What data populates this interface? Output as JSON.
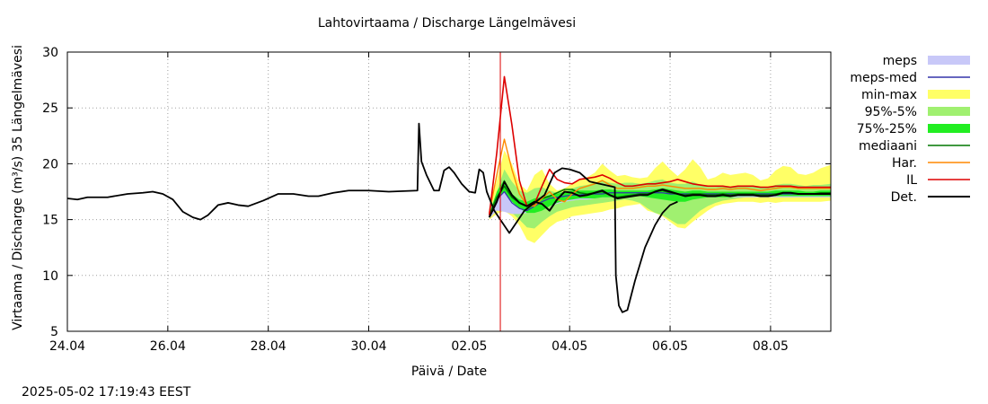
{
  "chart_data": {
    "type": "line",
    "title": "Lahtovirtaama / Discharge  Längelmävesi",
    "xlabel": "Päivä / Date",
    "ylabel": "Virtaama / Discharge (m³/s)  35 Längelmävesi",
    "ylim": [
      5,
      30
    ],
    "yticks": [
      5,
      10,
      15,
      20,
      25,
      30
    ],
    "xlim": [
      0,
      15.2
    ],
    "xticks": [
      {
        "pos": 0,
        "label": "24.04"
      },
      {
        "pos": 2,
        "label": "26.04"
      },
      {
        "pos": 4,
        "label": "28.04"
      },
      {
        "pos": 6,
        "label": "30.04"
      },
      {
        "pos": 8,
        "label": "02.05"
      },
      {
        "pos": 10,
        "label": "04.05"
      },
      {
        "pos": 12,
        "label": "06.05"
      },
      {
        "pos": 14,
        "label": "08.05"
      }
    ],
    "grid": true,
    "legend_position": "right",
    "forecast_start": 8.62,
    "legend": [
      {
        "label": "meps",
        "color": "#c8c8f8",
        "kind": "band"
      },
      {
        "label": "meps-med",
        "color": "#3333aa",
        "kind": "line"
      },
      {
        "label": "min-max",
        "color": "#ffff66",
        "kind": "band"
      },
      {
        "label": "95%-5%",
        "color": "#a0f070",
        "kind": "band"
      },
      {
        "label": "75%-25%",
        "color": "#22ee22",
        "kind": "band"
      },
      {
        "label": "mediaani",
        "color": "#007700",
        "kind": "line"
      },
      {
        "label": "Har.",
        "color": "#ff8800",
        "kind": "line"
      },
      {
        "label": "IL",
        "color": "#dd0000",
        "kind": "line"
      },
      {
        "label": "Det.",
        "color": "#000000",
        "kind": "line"
      }
    ],
    "observed": {
      "name": "Det.",
      "points": [
        [
          0,
          16.9
        ],
        [
          0.2,
          16.8
        ],
        [
          0.4,
          17.0
        ],
        [
          0.8,
          17.0
        ],
        [
          1.2,
          17.3
        ],
        [
          1.5,
          17.4
        ],
        [
          1.7,
          17.5
        ],
        [
          1.9,
          17.3
        ],
        [
          2.1,
          16.8
        ],
        [
          2.3,
          15.7
        ],
        [
          2.5,
          15.2
        ],
        [
          2.65,
          15.0
        ],
        [
          2.8,
          15.4
        ],
        [
          3.0,
          16.3
        ],
        [
          3.2,
          16.5
        ],
        [
          3.4,
          16.3
        ],
        [
          3.6,
          16.2
        ],
        [
          3.9,
          16.7
        ],
        [
          4.2,
          17.3
        ],
        [
          4.5,
          17.3
        ],
        [
          4.8,
          17.1
        ],
        [
          5.0,
          17.1
        ],
        [
          5.3,
          17.4
        ],
        [
          5.6,
          17.6
        ],
        [
          6.0,
          17.6
        ],
        [
          6.4,
          17.5
        ],
        [
          6.97,
          17.6
        ],
        [
          7.0,
          23.6
        ],
        [
          7.05,
          20.2
        ],
        [
          7.15,
          19.0
        ],
        [
          7.3,
          17.6
        ],
        [
          7.4,
          17.6
        ],
        [
          7.5,
          19.4
        ],
        [
          7.6,
          19.7
        ],
        [
          7.7,
          19.2
        ],
        [
          7.85,
          18.2
        ],
        [
          8.0,
          17.5
        ],
        [
          8.12,
          17.4
        ],
        [
          8.2,
          19.5
        ],
        [
          8.28,
          19.2
        ],
        [
          8.35,
          17.5
        ],
        [
          8.5,
          15.8
        ],
        [
          8.65,
          14.8
        ],
        [
          8.8,
          13.8
        ],
        [
          8.95,
          14.8
        ],
        [
          9.1,
          15.8
        ],
        [
          9.3,
          16.5
        ],
        [
          9.5,
          17.2
        ],
        [
          9.7,
          19.2
        ],
        [
          9.85,
          19.6
        ],
        [
          10.0,
          19.5
        ],
        [
          10.2,
          19.2
        ],
        [
          10.4,
          18.4
        ],
        [
          10.6,
          18.2
        ],
        [
          10.8,
          18.0
        ],
        [
          10.9,
          17.9
        ],
        [
          10.92,
          10.0
        ],
        [
          10.98,
          7.3
        ],
        [
          11.05,
          6.7
        ],
        [
          11.15,
          6.9
        ],
        [
          11.3,
          9.5
        ],
        [
          11.5,
          12.5
        ],
        [
          11.7,
          14.5
        ],
        [
          11.85,
          15.6
        ],
        [
          12.0,
          16.3
        ],
        [
          12.15,
          16.6
        ]
      ]
    },
    "forecast": {
      "x": [
        8.4,
        8.55,
        8.7,
        8.85,
        9.0,
        9.15,
        9.3,
        9.45,
        9.6,
        9.75,
        9.9,
        10.05,
        10.2,
        10.35,
        10.5,
        10.65,
        10.8,
        10.95,
        11.1,
        11.25,
        11.4,
        11.55,
        11.7,
        11.85,
        12.0,
        12.15,
        12.3,
        12.45,
        12.6,
        12.75,
        12.9,
        13.05,
        13.2,
        13.35,
        13.5,
        13.65,
        13.8,
        13.95,
        14.1,
        14.25,
        14.4,
        14.55,
        14.7,
        14.85,
        15.0,
        15.2
      ],
      "minmax_lo": [
        15.0,
        15.5,
        15.8,
        15.3,
        14.5,
        13.2,
        12.9,
        13.6,
        14.3,
        14.8,
        15.0,
        15.3,
        15.4,
        15.5,
        15.6,
        15.7,
        15.9,
        16.0,
        16.2,
        16.3,
        16.4,
        15.8,
        15.6,
        15.3,
        14.8,
        14.3,
        14.2,
        14.8,
        15.3,
        15.8,
        16.2,
        16.4,
        16.5,
        16.6,
        16.6,
        16.6,
        16.5,
        16.6,
        16.5,
        16.6,
        16.6,
        16.6,
        16.6,
        16.6,
        16.6,
        16.7
      ],
      "minmax_hi": [
        16.0,
        18.5,
        21.2,
        20.0,
        18.2,
        17.6,
        19.0,
        19.5,
        18.2,
        17.6,
        17.8,
        18.2,
        18.6,
        18.8,
        19.2,
        20.0,
        19.4,
        18.9,
        19.0,
        18.8,
        18.7,
        18.8,
        19.6,
        20.2,
        19.5,
        18.9,
        19.5,
        20.4,
        19.7,
        18.6,
        18.8,
        19.2,
        19.0,
        19.1,
        19.2,
        19.0,
        18.5,
        18.7,
        19.4,
        19.8,
        19.7,
        19.1,
        19.0,
        19.2,
        19.6,
        19.9
      ],
      "p95_lo": [
        15.1,
        15.8,
        16.0,
        15.6,
        15.0,
        14.3,
        14.2,
        14.8,
        15.3,
        15.7,
        15.9,
        16.1,
        16.2,
        16.3,
        16.4,
        16.5,
        16.6,
        16.7,
        16.8,
        16.7,
        16.5,
        16.0,
        15.6,
        15.4,
        15.0,
        14.6,
        14.6,
        15.2,
        15.8,
        16.2,
        16.5,
        16.7,
        16.8,
        16.9,
        17.0,
        17.0,
        17.0,
        17.0,
        17.0,
        17.0,
        17.0,
        17.0,
        17.0,
        17.0,
        17.0,
        17.0
      ],
      "p95_hi": [
        15.7,
        17.5,
        19.5,
        18.4,
        17.6,
        17.4,
        17.8,
        17.9,
        17.6,
        17.4,
        17.5,
        17.8,
        18.0,
        18.1,
        18.3,
        18.5,
        18.3,
        18.2,
        18.3,
        18.3,
        18.2,
        18.3,
        18.5,
        18.6,
        18.3,
        18.2,
        18.2,
        18.4,
        18.1,
        17.9,
        17.9,
        18.0,
        17.9,
        18.0,
        18.0,
        18.0,
        17.9,
        17.9,
        18.1,
        18.2,
        18.2,
        18.1,
        18.0,
        18.1,
        18.1,
        18.2
      ],
      "p75_lo": [
        15.3,
        16.8,
        17.5,
        16.6,
        16.0,
        15.6,
        15.6,
        15.8,
        16.2,
        16.5,
        16.7,
        16.8,
        16.9,
        16.9,
        16.9,
        17.0,
        17.0,
        17.0,
        17.1,
        17.1,
        17.1,
        17.0,
        16.9,
        16.8,
        16.7,
        16.6,
        16.6,
        16.8,
        16.9,
        17.0,
        17.0,
        17.0,
        17.0,
        17.1,
        17.1,
        17.1,
        17.1,
        17.1,
        17.1,
        17.1,
        17.1,
        17.1,
        17.1,
        17.1,
        17.1,
        17.1
      ],
      "p75_hi": [
        15.5,
        17.5,
        18.6,
        17.3,
        16.8,
        16.6,
        16.9,
        17.0,
        17.2,
        17.3,
        17.5,
        17.6,
        17.6,
        17.6,
        17.6,
        17.7,
        17.7,
        17.6,
        17.6,
        17.6,
        17.6,
        17.6,
        17.7,
        17.8,
        17.7,
        17.6,
        17.5,
        17.6,
        17.6,
        17.5,
        17.5,
        17.5,
        17.5,
        17.5,
        17.5,
        17.5,
        17.5,
        17.5,
        17.6,
        17.6,
        17.6,
        17.6,
        17.5,
        17.5,
        17.6,
        17.6
      ],
      "meps_lo": [
        15.1,
        15.8,
        15.7,
        15.5,
        15.5,
        15.6,
        15.7,
        15.9,
        16.2,
        16.4,
        16.6,
        16.7,
        16.8,
        16.8,
        16.9,
        17.0,
        17.0,
        17.0,
        17.1,
        17.1,
        17.1,
        17.0,
        17.0,
        17.0,
        17.0,
        17.0,
        17.0,
        17.0,
        17.0,
        17.0,
        17.0,
        17.0,
        17.0,
        17.0,
        17.0,
        17.0,
        17.0,
        17.0,
        17.0,
        17.0,
        17.0,
        17.0,
        17.0,
        17.0,
        17.0,
        17.0
      ],
      "meps_hi": [
        15.6,
        17.4,
        18.0,
        16.8,
        16.1,
        16.0,
        16.4,
        16.8,
        17.1,
        17.2,
        17.3,
        17.4,
        17.4,
        17.5,
        17.5,
        17.5,
        17.5,
        17.5,
        17.5,
        17.5,
        17.5,
        17.5,
        17.5,
        17.5,
        17.5,
        17.5,
        17.5,
        17.5,
        17.5,
        17.5,
        17.5,
        17.5,
        17.5,
        17.5,
        17.5,
        17.5,
        17.5,
        17.5,
        17.5,
        17.5,
        17.5,
        17.5,
        17.5,
        17.5,
        17.5,
        17.5
      ],
      "meps_med": [
        15.3,
        16.8,
        17.5,
        16.5,
        16.0,
        15.8,
        16.2,
        16.6,
        16.9,
        17.0,
        17.1,
        17.2,
        17.2,
        17.3,
        17.3,
        17.3,
        17.4,
        17.4,
        17.4,
        17.4,
        17.4,
        17.4,
        17.4,
        17.4,
        17.3,
        17.3,
        17.3,
        17.3,
        17.3,
        17.3,
        17.3,
        17.3,
        17.3,
        17.3,
        17.3,
        17.3,
        17.3,
        17.3,
        17.3,
        17.3,
        17.3,
        17.3,
        17.3,
        17.3,
        17.3,
        17.3
      ],
      "median": [
        15.4,
        17.0,
        18.0,
        17.0,
        16.5,
        16.2,
        16.6,
        16.9,
        17.1,
        17.4,
        17.7,
        17.7,
        17.4,
        17.3,
        17.4,
        17.5,
        17.2,
        17.0,
        17.1,
        17.2,
        17.3,
        17.3,
        17.5,
        17.6,
        17.4,
        17.3,
        17.2,
        17.3,
        17.3,
        17.2,
        17.2,
        17.3,
        17.2,
        17.3,
        17.3,
        17.3,
        17.2,
        17.2,
        17.3,
        17.4,
        17.4,
        17.3,
        17.3,
        17.3,
        17.4,
        17.4
      ],
      "har": [
        15.6,
        19.0,
        22.2,
        19.5,
        17.3,
        16.3,
        16.2,
        16.9,
        17.5,
        16.8,
        16.6,
        17.3,
        17.8,
        18.0,
        18.2,
        18.5,
        18.1,
        17.8,
        17.8,
        17.8,
        17.9,
        18.0,
        18.0,
        18.1,
        18.0,
        17.9,
        17.8,
        17.8,
        17.8,
        17.7,
        17.7,
        17.8,
        17.7,
        17.8,
        17.8,
        17.7,
        17.6,
        17.7,
        17.8,
        17.9,
        17.9,
        17.8,
        17.8,
        17.8,
        17.8,
        17.8
      ],
      "il": [
        15.4,
        21.0,
        27.8,
        23.5,
        18.5,
        16.2,
        16.4,
        18.0,
        19.5,
        18.6,
        18.3,
        18.2,
        18.6,
        18.7,
        18.8,
        19.0,
        18.7,
        18.3,
        18.0,
        18.0,
        18.1,
        18.2,
        18.2,
        18.3,
        18.4,
        18.6,
        18.4,
        18.2,
        18.1,
        18.0,
        18.0,
        18.0,
        17.9,
        18.0,
        18.0,
        18.0,
        17.9,
        17.9,
        18.0,
        18.0,
        18.0,
        17.9,
        17.9,
        17.9,
        17.9,
        17.9
      ],
      "det": [
        15.2,
        16.6,
        18.4,
        17.2,
        16.5,
        16.2,
        16.6,
        16.4,
        15.8,
        16.8,
        17.5,
        17.4,
        17.1,
        17.2,
        17.4,
        17.6,
        17.2,
        16.9,
        17.0,
        17.1,
        17.2,
        17.2,
        17.5,
        17.7,
        17.5,
        17.3,
        17.1,
        17.2,
        17.2,
        17.1,
        17.1,
        17.2,
        17.1,
        17.2,
        17.2,
        17.2,
        17.1,
        17.1,
        17.2,
        17.4,
        17.4,
        17.3,
        17.3,
        17.3,
        17.3,
        17.3
      ]
    }
  },
  "footer": {
    "timestamp": "2025-05-02 17:19:43 EEST"
  }
}
